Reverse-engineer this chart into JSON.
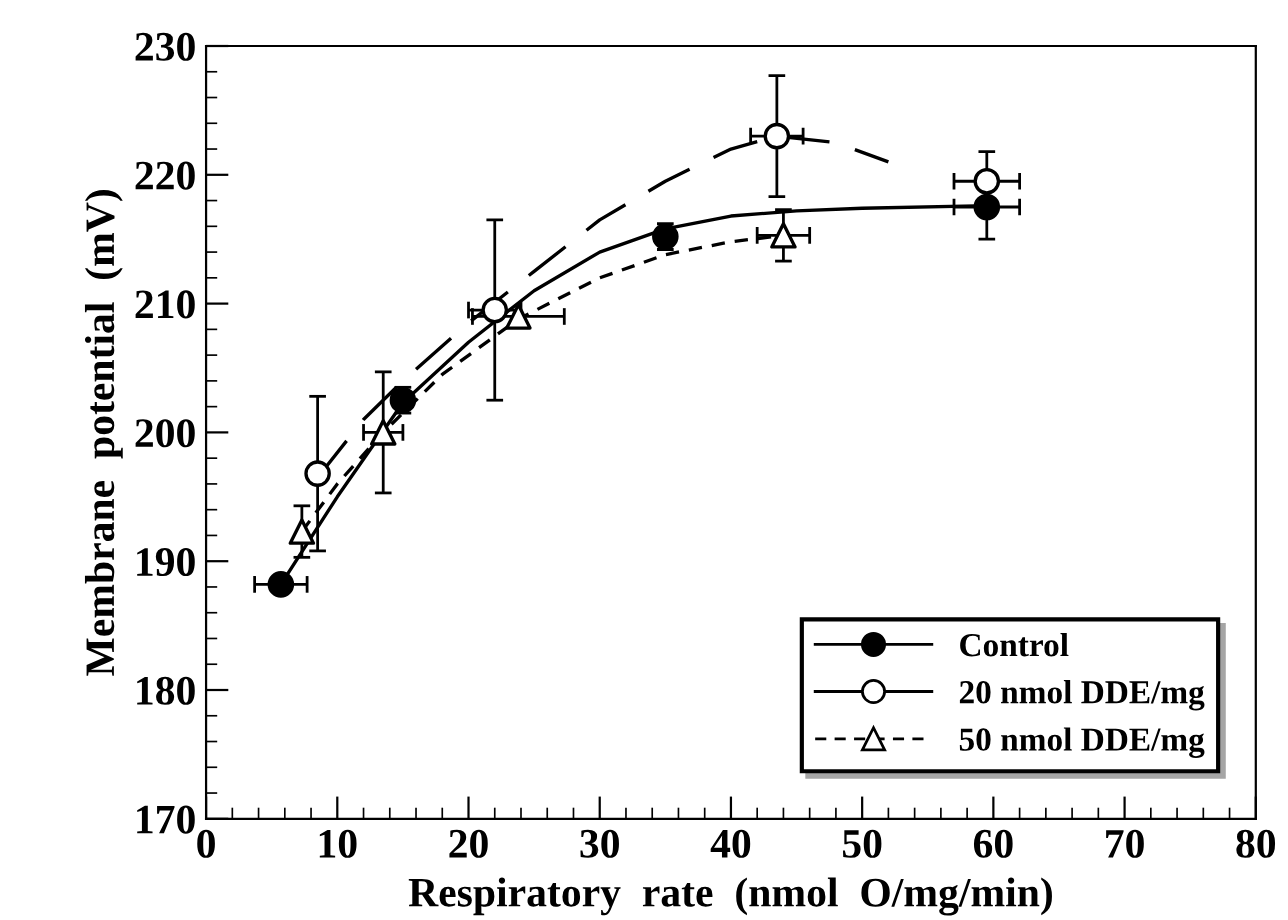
{
  "chart_data": {
    "type": "scatter",
    "xlabel": "Respiratory  rate  (nmol  O/mg/min)",
    "ylabel": "Membrane  potential  (mV)",
    "xlim": [
      0,
      80
    ],
    "ylim": [
      170,
      230
    ],
    "xticks": [
      0,
      {
        "value": 2,
        "label": null
      },
      {
        "value": 4,
        "label": null
      },
      {
        "value": 6,
        "label": null
      },
      {
        "value": 8,
        "label": null
      },
      10,
      {
        "value": 12,
        "label": null
      },
      {
        "value": 14,
        "label": null
      },
      {
        "value": 16,
        "label": null
      },
      {
        "value": 18,
        "label": null
      },
      20,
      {
        "value": 22,
        "label": null
      },
      {
        "value": 24,
        "label": null
      },
      {
        "value": 26,
        "label": null
      },
      {
        "value": 28,
        "label": null
      },
      30,
      {
        "value": 32,
        "label": null
      },
      {
        "value": 34,
        "label": null
      },
      {
        "value": 36,
        "label": null
      },
      {
        "value": 38,
        "label": null
      },
      40,
      {
        "value": 42,
        "label": null
      },
      {
        "value": 44,
        "label": null
      },
      {
        "value": 46,
        "label": null
      },
      {
        "value": 48,
        "label": null
      },
      50,
      {
        "value": 52,
        "label": null
      },
      {
        "value": 54,
        "label": null
      },
      {
        "value": 56,
        "label": null
      },
      {
        "value": 58,
        "label": null
      },
      60,
      {
        "value": 62,
        "label": null
      },
      {
        "value": 64,
        "label": null
      },
      {
        "value": 66,
        "label": null
      },
      {
        "value": 68,
        "label": null
      },
      70,
      {
        "value": 72,
        "label": null
      },
      {
        "value": 74,
        "label": null
      },
      {
        "value": 76,
        "label": null
      },
      {
        "value": 78,
        "label": null
      },
      80
    ],
    "yticks": [
      170,
      {
        "value": 172,
        "label": null
      },
      {
        "value": 174,
        "label": null
      },
      {
        "value": 176,
        "label": null
      },
      {
        "value": 178,
        "label": null
      },
      180,
      {
        "value": 182,
        "label": null
      },
      {
        "value": 184,
        "label": null
      },
      {
        "value": 186,
        "label": null
      },
      {
        "value": 188,
        "label": null
      },
      190,
      {
        "value": 192,
        "label": null
      },
      {
        "value": 194,
        "label": null
      },
      {
        "value": 196,
        "label": null
      },
      {
        "value": 198,
        "label": null
      },
      200,
      {
        "value": 202,
        "label": null
      },
      {
        "value": 204,
        "label": null
      },
      {
        "value": 206,
        "label": null
      },
      {
        "value": 208,
        "label": null
      },
      210,
      {
        "value": 212,
        "label": null
      },
      {
        "value": 214,
        "label": null
      },
      {
        "value": 216,
        "label": null
      },
      {
        "value": 218,
        "label": null
      },
      220,
      {
        "value": 222,
        "label": null
      },
      {
        "value": 224,
        "label": null
      },
      {
        "value": 226,
        "label": null
      },
      {
        "value": 228,
        "label": null
      },
      230
    ],
    "grid": false,
    "legend": "bottom right",
    "series": [
      {
        "name": "Control",
        "color": "#000000",
        "marker": "circle",
        "line_style": "solid",
        "x": [
          5.7,
          15,
          35,
          59.5
        ],
        "values": [
          188.2,
          202.5,
          215.2,
          217.5
        ],
        "errors": [
          null,
          1,
          1,
          2.5
        ],
        "xerrors": [
          2,
          null,
          null,
          2.5
        ]
      },
      {
        "name": "20 nmol DDE/mg",
        "color": "#000000",
        "marker": "circle",
        "line_style": "solid",
        "x": [
          8.5,
          22,
          43.5,
          59.5
        ],
        "values": [
          196.8,
          209.5,
          223,
          219.5
        ],
        "errors": [
          6,
          7,
          4.7,
          2.3
        ],
        "xerrors": [
          null,
          2,
          2,
          2.5
        ]
      },
      {
        "name": "50 nmol DDE/mg",
        "color": "#000000",
        "marker": "triangle",
        "line_style": "dashed",
        "x": [
          7.3,
          13.5,
          23.8,
          44
        ],
        "values": [
          192.3,
          200,
          209,
          215.3
        ],
        "errors": [
          2,
          4.7,
          null,
          2
        ],
        "xerrors": [
          null,
          1.5,
          3.5,
          2
        ]
      },
      {
        "type": "line",
        "color": "#000000",
        "line_style": "solid",
        "x": [
          5.7,
          10,
          15,
          20,
          25,
          30,
          35,
          40,
          45,
          50,
          59.5
        ],
        "values": [
          188.2,
          195,
          202.3,
          207,
          211,
          214,
          215.8,
          216.8,
          217.2,
          217.4,
          217.6
        ]
      },
      {
        "type": "line",
        "color": "#000000",
        "line_style": "longdash",
        "x": [
          8.5,
          12,
          15,
          20,
          25,
          30,
          35,
          40,
          43.5,
          48,
          52
        ],
        "values": [
          196.5,
          201,
          204,
          208.5,
          212.5,
          216.5,
          219.5,
          222,
          223,
          222.5,
          221
        ]
      },
      {
        "type": "line",
        "color": "#000000",
        "line_style": "dashed",
        "x": [
          7.3,
          10,
          13.5,
          18,
          23.8,
          30,
          35,
          40,
          44
        ],
        "values": [
          192.3,
          196,
          200,
          204.5,
          208.8,
          212,
          213.8,
          214.8,
          215.3
        ]
      }
    ]
  }
}
